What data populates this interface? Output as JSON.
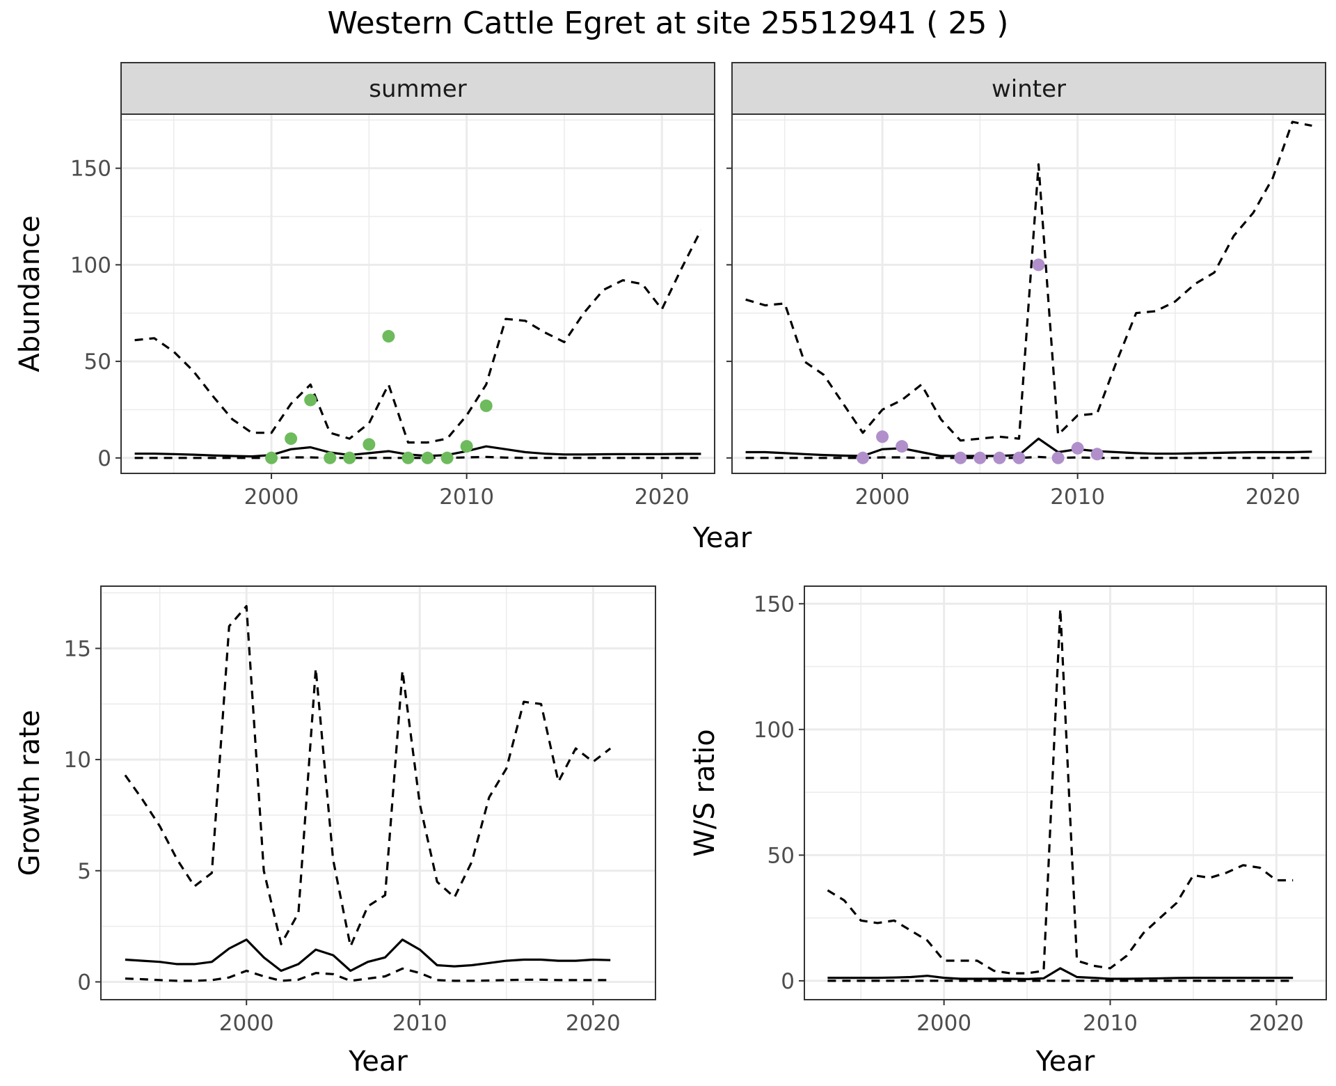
{
  "title": "Western Cattle Egret at site 25512941 ( 25 )",
  "colors": {
    "summer_points": "#6dbb5c",
    "winter_points": "#b08fcb",
    "lines": "#000000",
    "strip": "#d9d9d9",
    "grid": "#ebebeb"
  },
  "chart_data": [
    {
      "type": "line",
      "panel": "summer",
      "strip_label": "summer",
      "xlabel": "Year",
      "ylabel": "Abundance",
      "xlim": [
        1992.3,
        2022.7
      ],
      "ylim": [
        -8,
        178
      ],
      "x_ticks": [
        2000,
        2010,
        2020
      ],
      "y_ticks": [
        0,
        50,
        100,
        150
      ],
      "series": [
        {
          "role": "mean",
          "style": "solid",
          "x": [
            1993,
            1994,
            1995,
            1996,
            1997,
            1998,
            1999,
            2000,
            2001,
            2002,
            2003,
            2004,
            2005,
            2006,
            2007,
            2008,
            2009,
            2010,
            2011,
            2012,
            2013,
            2014,
            2015,
            2016,
            2017,
            2018,
            2019,
            2020,
            2021,
            2022
          ],
          "y": [
            2.2,
            2.2,
            2.0,
            1.7,
            1.3,
            1.0,
            0.8,
            1.5,
            4.5,
            5.5,
            2.8,
            1.5,
            2.5,
            3.5,
            1.8,
            1.0,
            1.5,
            3.5,
            6.0,
            4.5,
            3.0,
            2.2,
            1.8,
            1.8,
            1.9,
            2.0,
            2.0,
            2.0,
            2.1,
            2.1
          ]
        },
        {
          "role": "upper",
          "style": "dashed",
          "x": [
            1993,
            1994,
            1995,
            1996,
            1997,
            1998,
            1999,
            2000,
            2001,
            2002,
            2003,
            2004,
            2005,
            2006,
            2007,
            2008,
            2009,
            2010,
            2011,
            2012,
            2013,
            2014,
            2015,
            2016,
            2017,
            2018,
            2019,
            2020,
            2021,
            2022
          ],
          "y": [
            61,
            62,
            55,
            45,
            32,
            20,
            13,
            13,
            28,
            38,
            13,
            10,
            18,
            38,
            8,
            8,
            10,
            22,
            38,
            72,
            71,
            65,
            60,
            75,
            87,
            92,
            90,
            77,
            98,
            118
          ]
        },
        {
          "role": "lower",
          "style": "dashed",
          "x": [
            1993,
            1994,
            1995,
            1996,
            1997,
            1998,
            1999,
            2000,
            2001,
            2002,
            2003,
            2004,
            2005,
            2006,
            2007,
            2008,
            2009,
            2010,
            2011,
            2012,
            2013,
            2014,
            2015,
            2016,
            2017,
            2018,
            2019,
            2020,
            2021,
            2022
          ],
          "y": [
            0,
            0,
            0,
            0,
            0,
            0,
            0,
            0,
            0.3,
            0.3,
            0,
            0,
            0,
            0,
            0,
            0,
            0,
            0.3,
            0.5,
            0.2,
            0,
            0,
            0,
            0,
            0,
            0,
            0,
            0,
            0,
            0
          ]
        },
        {
          "role": "observed",
          "style": "points",
          "x": [
            2000,
            2001,
            2002,
            2003,
            2004,
            2005,
            2006,
            2007,
            2008,
            2009,
            2010,
            2011
          ],
          "y": [
            0,
            10,
            30,
            0,
            0,
            7,
            63,
            0,
            0,
            0,
            6,
            27
          ]
        }
      ]
    },
    {
      "type": "line",
      "panel": "winter",
      "strip_label": "winter",
      "xlabel": "Year",
      "ylabel": "Abundance",
      "xlim": [
        1992.3,
        2022.7
      ],
      "ylim": [
        -8,
        178
      ],
      "x_ticks": [
        2000,
        2010,
        2020
      ],
      "y_ticks": [
        0,
        50,
        100,
        150
      ],
      "series": [
        {
          "role": "mean",
          "style": "solid",
          "x": [
            1993,
            1994,
            1995,
            1996,
            1997,
            1998,
            1999,
            2000,
            2001,
            2002,
            2003,
            2004,
            2005,
            2006,
            2007,
            2008,
            2009,
            2010,
            2011,
            2012,
            2013,
            2014,
            2015,
            2016,
            2017,
            2018,
            2019,
            2020,
            2021,
            2022
          ],
          "y": [
            3.0,
            3.0,
            2.5,
            2.0,
            1.5,
            1.2,
            1.0,
            4.5,
            5.0,
            3.0,
            1.0,
            1.0,
            1.0,
            1.0,
            1.5,
            10,
            3.0,
            4.5,
            3.5,
            3.0,
            2.5,
            2.2,
            2.2,
            2.4,
            2.6,
            2.8,
            3.0,
            3.0,
            3.0,
            3.2
          ]
        },
        {
          "role": "upper",
          "style": "dashed",
          "x": [
            1993,
            1994,
            1995,
            1996,
            1997,
            1998,
            1999,
            2000,
            2001,
            2002,
            2003,
            2004,
            2005,
            2006,
            2007,
            2008,
            2009,
            2010,
            2011,
            2012,
            2013,
            2014,
            2015,
            2016,
            2017,
            2018,
            2019,
            2020,
            2021,
            2022
          ],
          "y": [
            82,
            79,
            80,
            50,
            43,
            28,
            13,
            25,
            30,
            38,
            20,
            9,
            10,
            11,
            10,
            152,
            12,
            22,
            23,
            50,
            75,
            76,
            81,
            90,
            96,
            115,
            127,
            145,
            174,
            172
          ]
        },
        {
          "role": "lower",
          "style": "dashed",
          "x": [
            1993,
            1994,
            1995,
            1996,
            1997,
            1998,
            1999,
            2000,
            2001,
            2002,
            2003,
            2004,
            2005,
            2006,
            2007,
            2008,
            2009,
            2010,
            2011,
            2012,
            2013,
            2014,
            2015,
            2016,
            2017,
            2018,
            2019,
            2020,
            2021,
            2022
          ],
          "y": [
            0,
            0,
            0,
            0,
            0,
            0,
            0,
            0.3,
            0.3,
            0,
            0,
            0,
            0,
            0,
            0,
            0.5,
            0,
            0.3,
            0,
            0,
            0,
            0,
            0,
            0,
            0,
            0,
            0,
            0,
            0,
            0
          ]
        },
        {
          "role": "observed",
          "style": "points",
          "x": [
            1999,
            2000,
            2001,
            2004,
            2005,
            2006,
            2007,
            2008,
            2009,
            2010,
            2011
          ],
          "y": [
            0,
            11,
            6,
            0,
            0,
            0,
            0,
            100,
            0,
            5,
            2
          ]
        }
      ]
    },
    {
      "type": "line",
      "panel": "growth",
      "xlabel": "Year",
      "ylabel": "Growth rate",
      "xlim": [
        1991.6,
        2023.6
      ],
      "ylim": [
        -0.8,
        17.8
      ],
      "x_ticks": [
        2000,
        2010,
        2020
      ],
      "y_ticks": [
        0,
        5,
        10,
        15
      ],
      "series": [
        {
          "role": "mean",
          "style": "solid",
          "x": [
            1993,
            1994,
            1995,
            1996,
            1997,
            1998,
            1999,
            2000,
            2001,
            2002,
            2003,
            2004,
            2005,
            2006,
            2007,
            2008,
            2009,
            2010,
            2011,
            2012,
            2013,
            2014,
            2015,
            2016,
            2017,
            2018,
            2019,
            2020,
            2021
          ],
          "y": [
            1.0,
            0.95,
            0.9,
            0.8,
            0.8,
            0.9,
            1.5,
            1.9,
            1.1,
            0.5,
            0.8,
            1.45,
            1.2,
            0.5,
            0.9,
            1.1,
            1.9,
            1.45,
            0.75,
            0.7,
            0.75,
            0.85,
            0.95,
            1.0,
            1.0,
            0.95,
            0.95,
            1.0,
            0.98
          ]
        },
        {
          "role": "upper",
          "style": "dashed",
          "x": [
            1993,
            1994,
            1995,
            1996,
            1997,
            1998,
            1999,
            2000,
            2001,
            2002,
            2003,
            2004,
            2005,
            2006,
            2007,
            2008,
            2009,
            2010,
            2011,
            2012,
            2013,
            2014,
            2015,
            2016,
            2017,
            2018,
            2019,
            2020,
            2021
          ],
          "y": [
            9.3,
            8.2,
            7.0,
            5.5,
            4.3,
            4.9,
            16.0,
            16.9,
            5.0,
            1.7,
            3.1,
            14.1,
            5.5,
            1.6,
            3.4,
            3.9,
            14.0,
            8.0,
            4.5,
            3.8,
            5.4,
            8.3,
            9.6,
            12.6,
            12.5,
            9.0,
            10.5,
            9.9,
            10.5
          ]
        },
        {
          "role": "lower",
          "style": "dashed",
          "x": [
            1993,
            1994,
            1995,
            1996,
            1997,
            1998,
            1999,
            2000,
            2001,
            2002,
            2003,
            2004,
            2005,
            2006,
            2007,
            2008,
            2009,
            2010,
            2011,
            2012,
            2013,
            2014,
            2015,
            2016,
            2017,
            2018,
            2019,
            2020,
            2021
          ],
          "y": [
            0.15,
            0.12,
            0.08,
            0.05,
            0.05,
            0.08,
            0.2,
            0.5,
            0.25,
            0.05,
            0.1,
            0.4,
            0.35,
            0.05,
            0.15,
            0.25,
            0.6,
            0.4,
            0.08,
            0.05,
            0.05,
            0.06,
            0.08,
            0.1,
            0.1,
            0.08,
            0.08,
            0.08,
            0.08
          ]
        }
      ]
    },
    {
      "type": "line",
      "panel": "ratio",
      "xlabel": "Year",
      "ylabel": "W/S ratio",
      "xlim": [
        1991.6,
        2023.0
      ],
      "ylim": [
        -7.5,
        157
      ],
      "x_ticks": [
        2000,
        2010,
        2020
      ],
      "y_ticks": [
        0,
        50,
        100,
        150
      ],
      "series": [
        {
          "role": "mean",
          "style": "solid",
          "x": [
            1993,
            1994,
            1995,
            1996,
            1997,
            1998,
            1999,
            2000,
            2001,
            2002,
            2003,
            2004,
            2005,
            2006,
            2007,
            2008,
            2009,
            2010,
            2011,
            2012,
            2013,
            2014,
            2015,
            2016,
            2017,
            2018,
            2019,
            2020,
            2021
          ],
          "y": [
            1.2,
            1.2,
            1.2,
            1.2,
            1.3,
            1.5,
            2.0,
            1.2,
            0.8,
            0.8,
            0.8,
            0.8,
            0.7,
            1.0,
            5.0,
            1.5,
            1.2,
            0.8,
            0.8,
            0.9,
            1.0,
            1.1,
            1.2,
            1.2,
            1.2,
            1.2,
            1.2,
            1.2,
            1.2
          ]
        },
        {
          "role": "upper",
          "style": "dashed",
          "x": [
            1993,
            1994,
            1995,
            1996,
            1997,
            1998,
            1999,
            2000,
            2001,
            2002,
            2003,
            2004,
            2005,
            2006,
            2007,
            2008,
            2009,
            2010,
            2011,
            2012,
            2013,
            2014,
            2015,
            2016,
            2017,
            2018,
            2019,
            2020,
            2021
          ],
          "y": [
            36,
            32,
            24,
            23,
            24,
            20,
            16,
            8,
            8,
            8,
            4,
            3,
            3,
            4,
            148,
            8,
            6,
            5,
            10,
            19,
            25,
            31,
            42,
            41,
            43,
            46,
            45,
            40,
            40
          ]
        },
        {
          "role": "lower",
          "style": "dashed",
          "x": [
            1993,
            1994,
            1995,
            1996,
            1997,
            1998,
            1999,
            2000,
            2001,
            2002,
            2003,
            2004,
            2005,
            2006,
            2007,
            2008,
            2009,
            2010,
            2011,
            2012,
            2013,
            2014,
            2015,
            2016,
            2017,
            2018,
            2019,
            2020,
            2021
          ],
          "y": [
            0,
            0,
            0,
            0,
            0,
            0,
            0,
            0,
            0,
            0,
            0,
            0,
            0,
            0,
            0,
            0,
            0,
            0,
            0,
            0,
            0,
            0,
            0,
            0,
            0,
            0,
            0,
            0,
            0
          ]
        }
      ]
    }
  ]
}
